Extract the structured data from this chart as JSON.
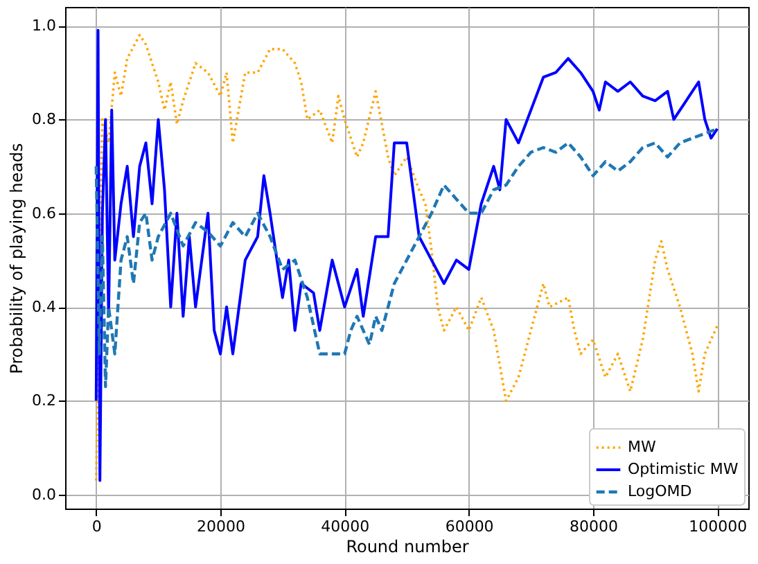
{
  "chart_data": {
    "type": "line",
    "xlabel": "Round number",
    "ylabel": "Probability of playing heads",
    "xlim": [
      -5000,
      105000
    ],
    "ylim": [
      -0.03,
      1.04
    ],
    "xticks": [
      0,
      20000,
      40000,
      60000,
      80000,
      100000
    ],
    "yticks": [
      {
        "value": 0,
        "label": "0.0"
      },
      0.2,
      0.4,
      0.6,
      0.8,
      {
        "value": 1,
        "label": "1.0"
      }
    ],
    "grid": true,
    "legend": "bottom right",
    "series": [
      {
        "name": "MW",
        "color": "#ffa500",
        "line_style": "dotted",
        "x": [
          0,
          500,
          1000,
          2000,
          3000,
          4000,
          5000,
          7000,
          8000,
          10000,
          11000,
          12000,
          13000,
          14000,
          16000,
          18000,
          20000,
          21000,
          22000,
          24000,
          26000,
          28000,
          30000,
          32000,
          33000,
          34000,
          36000,
          38000,
          39000,
          40000,
          42000,
          43000,
          45000,
          47000,
          48000,
          50000,
          52000,
          53000,
          54000,
          55000,
          56000,
          58000,
          60000,
          62000,
          64000,
          66000,
          68000,
          70000,
          72000,
          73000,
          76000,
          77000,
          78000,
          80000,
          82000,
          84000,
          86000,
          88000,
          90000,
          91000,
          92000,
          94000,
          96000,
          97000,
          98000,
          100000
        ],
        "values": [
          0.03,
          0.5,
          0.8,
          0.75,
          0.9,
          0.85,
          0.93,
          0.98,
          0.96,
          0.88,
          0.82,
          0.88,
          0.79,
          0.84,
          0.92,
          0.9,
          0.85,
          0.9,
          0.75,
          0.9,
          0.9,
          0.95,
          0.95,
          0.92,
          0.88,
          0.8,
          0.82,
          0.75,
          0.85,
          0.8,
          0.72,
          0.75,
          0.86,
          0.72,
          0.68,
          0.72,
          0.65,
          0.62,
          0.52,
          0.4,
          0.35,
          0.4,
          0.35,
          0.42,
          0.35,
          0.2,
          0.25,
          0.35,
          0.45,
          0.4,
          0.42,
          0.35,
          0.3,
          0.33,
          0.25,
          0.3,
          0.22,
          0.33,
          0.5,
          0.54,
          0.48,
          0.4,
          0.3,
          0.22,
          0.3,
          0.36
        ]
      },
      {
        "name": "Optimistic MW",
        "color": "#0000ff",
        "line_style": "solid",
        "x": [
          0,
          300,
          600,
          1000,
          1500,
          2000,
          2500,
          3000,
          4000,
          5000,
          6000,
          7000,
          8000,
          9000,
          10000,
          11000,
          12000,
          13000,
          14000,
          15000,
          16000,
          18000,
          19000,
          20000,
          21000,
          22000,
          24000,
          26000,
          27000,
          28000,
          30000,
          31000,
          32000,
          33000,
          35000,
          36000,
          38000,
          40000,
          42000,
          43000,
          45000,
          47000,
          48000,
          50000,
          52000,
          54000,
          56000,
          58000,
          60000,
          62000,
          64000,
          65000,
          66000,
          68000,
          70000,
          72000,
          74000,
          76000,
          78000,
          80000,
          81000,
          82000,
          84000,
          86000,
          88000,
          90000,
          92000,
          93000,
          95000,
          97000,
          98000,
          99000,
          100000
        ],
        "values": [
          0.2,
          0.99,
          0.03,
          0.6,
          0.8,
          0.38,
          0.82,
          0.5,
          0.62,
          0.7,
          0.55,
          0.7,
          0.75,
          0.62,
          0.8,
          0.65,
          0.4,
          0.6,
          0.38,
          0.55,
          0.4,
          0.6,
          0.35,
          0.3,
          0.4,
          0.3,
          0.5,
          0.55,
          0.68,
          0.6,
          0.42,
          0.5,
          0.35,
          0.45,
          0.43,
          0.35,
          0.5,
          0.4,
          0.48,
          0.38,
          0.55,
          0.55,
          0.75,
          0.75,
          0.55,
          0.5,
          0.45,
          0.5,
          0.48,
          0.62,
          0.7,
          0.65,
          0.8,
          0.75,
          0.82,
          0.89,
          0.9,
          0.93,
          0.9,
          0.86,
          0.82,
          0.88,
          0.86,
          0.88,
          0.85,
          0.84,
          0.86,
          0.8,
          0.84,
          0.88,
          0.8,
          0.76,
          0.78
        ]
      },
      {
        "name": "LogOMD",
        "color": "#1f77b4",
        "line_style": "dashed",
        "x": [
          0,
          500,
          1000,
          1500,
          2000,
          3000,
          4000,
          5000,
          6000,
          7000,
          8000,
          9000,
          10000,
          12000,
          14000,
          16000,
          18000,
          20000,
          22000,
          24000,
          26000,
          28000,
          30000,
          32000,
          34000,
          35000,
          36000,
          38000,
          40000,
          41000,
          42000,
          44000,
          45000,
          46000,
          48000,
          50000,
          52000,
          54000,
          56000,
          58000,
          60000,
          62000,
          64000,
          66000,
          68000,
          70000,
          72000,
          74000,
          76000,
          78000,
          80000,
          82000,
          84000,
          86000,
          88000,
          90000,
          92000,
          94000,
          96000,
          98000,
          100000
        ],
        "values": [
          0.7,
          0.3,
          0.55,
          0.23,
          0.4,
          0.3,
          0.5,
          0.55,
          0.45,
          0.58,
          0.6,
          0.5,
          0.55,
          0.6,
          0.53,
          0.58,
          0.56,
          0.53,
          0.58,
          0.55,
          0.6,
          0.55,
          0.48,
          0.5,
          0.42,
          0.36,
          0.3,
          0.3,
          0.3,
          0.35,
          0.38,
          0.32,
          0.38,
          0.35,
          0.45,
          0.5,
          0.55,
          0.6,
          0.66,
          0.63,
          0.6,
          0.6,
          0.65,
          0.66,
          0.7,
          0.73,
          0.74,
          0.73,
          0.75,
          0.72,
          0.68,
          0.71,
          0.69,
          0.71,
          0.74,
          0.75,
          0.72,
          0.75,
          0.76,
          0.77,
          0.78
        ]
      }
    ]
  }
}
